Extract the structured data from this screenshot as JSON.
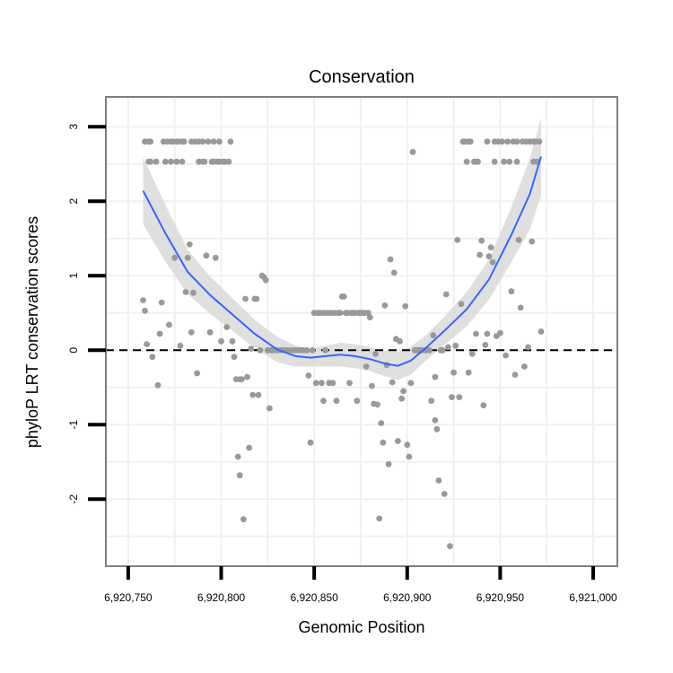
{
  "chart_data": {
    "type": "scatter",
    "title": "Conservation",
    "xlabel": "Genomic Position",
    "ylabel": "phyloP LRT conservation scores",
    "xlim": [
      6920738,
      6921013
    ],
    "ylim": [
      -2.9,
      3.4
    ],
    "x_ticks": [
      6920750,
      6920800,
      6920850,
      6920900,
      6920950,
      6921000
    ],
    "x_tick_labels": [
      "6,920,750",
      "6,920,800",
      "6,920,850",
      "6,920,900",
      "6,920,950",
      "6,921,000"
    ],
    "y_ticks": [
      -2,
      -1,
      0,
      1,
      2,
      3
    ],
    "y_tick_labels": [
      "-2",
      "-1",
      "0",
      "1",
      "2",
      "3"
    ],
    "reference_line": {
      "y": 0,
      "style": "dashed"
    },
    "colors": {
      "points": "#999999",
      "smooth_line": "#3366FF",
      "confidence_band": "#d9d9d9",
      "grid": "#f0f0f0",
      "panel_border": "#7f7f7f"
    },
    "points": [
      [
        6920758,
        0.67
      ],
      [
        6920759,
        0.53
      ],
      [
        6920759,
        2.8
      ],
      [
        6920760,
        0.08
      ],
      [
        6920761,
        2.8
      ],
      [
        6920761,
        2.53
      ],
      [
        6920762,
        2.8
      ],
      [
        6920762,
        2.53
      ],
      [
        6920763,
        -0.09
      ],
      [
        6920765,
        2.53
      ],
      [
        6920766,
        -0.47
      ],
      [
        6920767,
        0.22
      ],
      [
        6920768,
        0.64
      ],
      [
        6920769,
        2.8
      ],
      [
        6920770,
        2.53
      ],
      [
        6920771,
        2.8
      ],
      [
        6920772,
        0.34
      ],
      [
        6920773,
        2.8
      ],
      [
        6920773,
        2.53
      ],
      [
        6920774,
        2.8
      ],
      [
        6920775,
        1.24
      ],
      [
        6920776,
        2.8
      ],
      [
        6920776,
        2.53
      ],
      [
        6920777,
        2.8
      ],
      [
        6920778,
        0.06
      ],
      [
        6920779,
        2.8
      ],
      [
        6920779,
        2.53
      ],
      [
        6920780,
        2.8
      ],
      [
        6920781,
        0.78
      ],
      [
        6920782,
        1.24
      ],
      [
        6920783,
        1.42
      ],
      [
        6920784,
        2.8
      ],
      [
        6920784,
        0.24
      ],
      [
        6920785,
        0.77
      ],
      [
        6920786,
        2.8
      ],
      [
        6920787,
        -0.31
      ],
      [
        6920788,
        2.8
      ],
      [
        6920788,
        2.53
      ],
      [
        6920790,
        2.8
      ],
      [
        6920790,
        2.53
      ],
      [
        6920791,
        2.53
      ],
      [
        6920792,
        1.27
      ],
      [
        6920793,
        2.8
      ],
      [
        6920794,
        0.24
      ],
      [
        6920795,
        2.53
      ],
      [
        6920796,
        2.8
      ],
      [
        6920796,
        2.53
      ],
      [
        6920797,
        1.24
      ],
      [
        6920798,
        2.53
      ],
      [
        6920799,
        2.8
      ],
      [
        6920799,
        2.53
      ],
      [
        6920800,
        0.12
      ],
      [
        6920801,
        2.53
      ],
      [
        6920802,
        2.53
      ],
      [
        6920803,
        0.31
      ],
      [
        6920804,
        2.53
      ],
      [
        6920805,
        2.8
      ],
      [
        6920806,
        0.12
      ],
      [
        6920807,
        -0.09
      ],
      [
        6920808,
        -0.39
      ],
      [
        6920809,
        -1.43
      ],
      [
        6920810,
        -0.39
      ],
      [
        6920810,
        -1.68
      ],
      [
        6920811,
        -0.39
      ],
      [
        6920812,
        -2.27
      ],
      [
        6920813,
        0.69
      ],
      [
        6920814,
        -0.36
      ],
      [
        6920815,
        -1.31
      ],
      [
        6920816,
        0.02
      ],
      [
        6920817,
        -0.6
      ],
      [
        6920818,
        0.69
      ],
      [
        6920819,
        0.69
      ],
      [
        6920820,
        -0.6
      ],
      [
        6920821,
        0.0
      ],
      [
        6920822,
        1.0
      ],
      [
        6920823,
        0.98
      ],
      [
        6920824,
        0.94
      ],
      [
        6920825,
        0.0
      ],
      [
        6920826,
        -0.78
      ],
      [
        6920827,
        0.0
      ],
      [
        6920828,
        0.0
      ],
      [
        6920830,
        0.0
      ],
      [
        6920832,
        0.0
      ],
      [
        6920834,
        0.0
      ],
      [
        6920836,
        0.0
      ],
      [
        6920838,
        0.0
      ],
      [
        6920840,
        0.0
      ],
      [
        6920842,
        0.0
      ],
      [
        6920844,
        0.0
      ],
      [
        6920846,
        0.0
      ],
      [
        6920847,
        -0.34
      ],
      [
        6920848,
        -1.24
      ],
      [
        6920849,
        0.0
      ],
      [
        6920850,
        0.5
      ],
      [
        6920851,
        -0.44
      ],
      [
        6920852,
        0.5
      ],
      [
        6920853,
        0.5
      ],
      [
        6920854,
        -0.44
      ],
      [
        6920855,
        0.5
      ],
      [
        6920855,
        -0.68
      ],
      [
        6920856,
        0.0
      ],
      [
        6920857,
        0.5
      ],
      [
        6920858,
        -0.44
      ],
      [
        6920859,
        0.5
      ],
      [
        6920860,
        -0.44
      ],
      [
        6920861,
        0.5
      ],
      [
        6920862,
        -0.68
      ],
      [
        6920863,
        0.5
      ],
      [
        6920864,
        0.5
      ],
      [
        6920865,
        0.72
      ],
      [
        6920866,
        0.72
      ],
      [
        6920867,
        0.5
      ],
      [
        6920868,
        0.5
      ],
      [
        6920869,
        -0.44
      ],
      [
        6920870,
        0.5
      ],
      [
        6920871,
        0.5
      ],
      [
        6920872,
        0.5
      ],
      [
        6920873,
        -0.68
      ],
      [
        6920874,
        0.5
      ],
      [
        6920875,
        0.5
      ],
      [
        6920876,
        0.5
      ],
      [
        6920877,
        0.5
      ],
      [
        6920878,
        -0.22
      ],
      [
        6920879,
        0.5
      ],
      [
        6920880,
        0.44
      ],
      [
        6920881,
        -0.48
      ],
      [
        6920882,
        -0.72
      ],
      [
        6920883,
        -0.05
      ],
      [
        6920884,
        -0.73
      ],
      [
        6920885,
        -2.26
      ],
      [
        6920886,
        -0.98
      ],
      [
        6920887,
        -1.24
      ],
      [
        6920888,
        0.6
      ],
      [
        6920889,
        -0.2
      ],
      [
        6920890,
        -1.53
      ],
      [
        6920891,
        1.22
      ],
      [
        6920892,
        -0.43
      ],
      [
        6920893,
        1.04
      ],
      [
        6920894,
        0.15
      ],
      [
        6920895,
        -1.22
      ],
      [
        6920896,
        0.12
      ],
      [
        6920897,
        -0.65
      ],
      [
        6920898,
        -0.55
      ],
      [
        6920899,
        0.59
      ],
      [
        6920900,
        -1.27
      ],
      [
        6920901,
        -1.43
      ],
      [
        6920902,
        -0.44
      ],
      [
        6920903,
        2.66
      ],
      [
        6920904,
        0.0
      ],
      [
        6920905,
        0.0
      ],
      [
        6920906,
        0.0
      ],
      [
        6920907,
        0.0
      ],
      [
        6920908,
        0.0
      ],
      [
        6920910,
        0.0
      ],
      [
        6920912,
        0.0
      ],
      [
        6920913,
        -0.68
      ],
      [
        6920914,
        0.2
      ],
      [
        6920915,
        -0.36
      ],
      [
        6920915,
        -0.94
      ],
      [
        6920916,
        -1.06
      ],
      [
        6920917,
        -1.75
      ],
      [
        6920918,
        0.0
      ],
      [
        6920919,
        0.0
      ],
      [
        6920920,
        -1.93
      ],
      [
        6920921,
        0.75
      ],
      [
        6920922,
        0.04
      ],
      [
        6920923,
        -2.63
      ],
      [
        6920924,
        -0.63
      ],
      [
        6920925,
        -0.3
      ],
      [
        6920926,
        0.06
      ],
      [
        6920927,
        1.48
      ],
      [
        6920928,
        -0.63
      ],
      [
        6920929,
        0.62
      ],
      [
        6920930,
        2.8
      ],
      [
        6920931,
        2.8
      ],
      [
        6920932,
        2.53
      ],
      [
        6920933,
        2.8
      ],
      [
        6920933,
        -0.3
      ],
      [
        6920934,
        2.8
      ],
      [
        6920935,
        -0.05
      ],
      [
        6920936,
        2.53
      ],
      [
        6920937,
        0.22
      ],
      [
        6920937,
        2.53
      ],
      [
        6920938,
        2.53
      ],
      [
        6920939,
        1.28
      ],
      [
        6920940,
        1.47
      ],
      [
        6920941,
        -0.74
      ],
      [
        6920942,
        0.07
      ],
      [
        6920943,
        2.8
      ],
      [
        6920943,
        0.22
      ],
      [
        6920944,
        1.26
      ],
      [
        6920945,
        1.38
      ],
      [
        6920946,
        1.18
      ],
      [
        6920947,
        2.8
      ],
      [
        6920947,
        2.53
      ],
      [
        6920948,
        0.19
      ],
      [
        6920949,
        2.8
      ],
      [
        6920950,
        0.23
      ],
      [
        6920951,
        2.8
      ],
      [
        6920952,
        2.53
      ],
      [
        6920953,
        -0.07
      ],
      [
        6920954,
        2.8
      ],
      [
        6920955,
        2.53
      ],
      [
        6920956,
        0.79
      ],
      [
        6920957,
        2.8
      ],
      [
        6920958,
        -0.33
      ],
      [
        6920959,
        2.8
      ],
      [
        6920959,
        2.53
      ],
      [
        6920960,
        1.48
      ],
      [
        6920961,
        0.57
      ],
      [
        6920962,
        2.8
      ],
      [
        6920963,
        -0.22
      ],
      [
        6920964,
        2.8
      ],
      [
        6920965,
        0.04
      ],
      [
        6920966,
        2.8
      ],
      [
        6920967,
        1.46
      ],
      [
        6920968,
        2.8
      ],
      [
        6920968,
        2.53
      ],
      [
        6920969,
        2.8
      ],
      [
        6920970,
        2.53
      ],
      [
        6920971,
        2.8
      ],
      [
        6920972,
        0.25
      ]
    ],
    "smooth_fit": [
      [
        6920758,
        2.14
      ],
      [
        6920770,
        1.57
      ],
      [
        6920782,
        1.05
      ],
      [
        6920794,
        0.74
      ],
      [
        6920806,
        0.48
      ],
      [
        6920818,
        0.22
      ],
      [
        6920830,
        0.01
      ],
      [
        6920840,
        -0.08
      ],
      [
        6920848,
        -0.1
      ],
      [
        6920856,
        -0.08
      ],
      [
        6920864,
        -0.06
      ],
      [
        6920872,
        -0.08
      ],
      [
        6920880,
        -0.12
      ],
      [
        6920888,
        -0.18
      ],
      [
        6920895,
        -0.21
      ],
      [
        6920902,
        -0.14
      ],
      [
        6920910,
        0.03
      ],
      [
        6920920,
        0.26
      ],
      [
        6920932,
        0.55
      ],
      [
        6920944,
        0.95
      ],
      [
        6920956,
        1.55
      ],
      [
        6920966,
        2.1
      ],
      [
        6920972,
        2.6
      ]
    ],
    "band_upper": [
      [
        6920758,
        2.59
      ],
      [
        6920770,
        1.95
      ],
      [
        6920782,
        1.35
      ],
      [
        6920794,
        0.99
      ],
      [
        6920806,
        0.7
      ],
      [
        6920818,
        0.41
      ],
      [
        6920830,
        0.18
      ],
      [
        6920840,
        0.06
      ],
      [
        6920848,
        0.02
      ],
      [
        6920856,
        0.06
      ],
      [
        6920864,
        0.1
      ],
      [
        6920872,
        0.08
      ],
      [
        6920880,
        0.04
      ],
      [
        6920888,
        -0.01
      ],
      [
        6920895,
        -0.02
      ],
      [
        6920902,
        0.05
      ],
      [
        6920910,
        0.2
      ],
      [
        6920920,
        0.45
      ],
      [
        6920932,
        0.78
      ],
      [
        6920944,
        1.22
      ],
      [
        6920956,
        1.92
      ],
      [
        6920966,
        2.58
      ],
      [
        6920972,
        3.12
      ]
    ],
    "band_lower": [
      [
        6920758,
        1.69
      ],
      [
        6920770,
        1.19
      ],
      [
        6920782,
        0.75
      ],
      [
        6920794,
        0.49
      ],
      [
        6920806,
        0.26
      ],
      [
        6920818,
        0.03
      ],
      [
        6920830,
        -0.16
      ],
      [
        6920840,
        -0.22
      ],
      [
        6920848,
        -0.22
      ],
      [
        6920856,
        -0.22
      ],
      [
        6920864,
        -0.22
      ],
      [
        6920872,
        -0.24
      ],
      [
        6920880,
        -0.28
      ],
      [
        6920888,
        -0.35
      ],
      [
        6920895,
        -0.4
      ],
      [
        6920902,
        -0.33
      ],
      [
        6920910,
        -0.14
      ],
      [
        6920920,
        0.07
      ],
      [
        6920932,
        0.32
      ],
      [
        6920944,
        0.68
      ],
      [
        6920956,
        1.18
      ],
      [
        6920966,
        1.62
      ],
      [
        6920972,
        2.08
      ]
    ]
  }
}
